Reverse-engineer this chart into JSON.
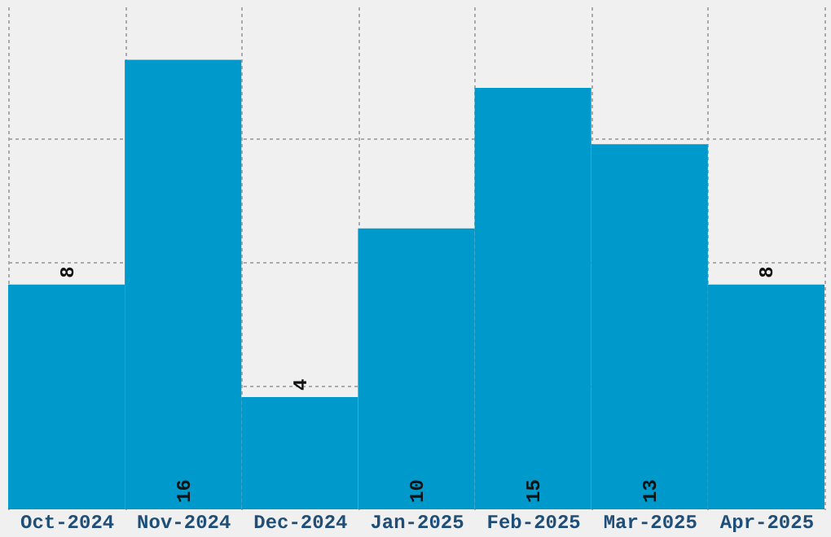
{
  "chart_data": {
    "type": "bar",
    "categories": [
      "Oct-2024",
      "Nov-2024",
      "Dec-2024",
      "Jan-2025",
      "Feb-2025",
      "Mar-2025",
      "Apr-2025"
    ],
    "values": [
      8,
      16,
      4,
      10,
      15,
      13,
      8
    ],
    "color": "#0099cc",
    "data_labels": true,
    "ylim": [
      0,
      17.9
    ],
    "yticks": [
      {
        "value": 4.4,
        "label": null
      },
      {
        "value": 8.8,
        "label": null
      },
      {
        "value": 13.2,
        "label": null
      }
    ],
    "grid": true,
    "tick_labels": "x"
  }
}
